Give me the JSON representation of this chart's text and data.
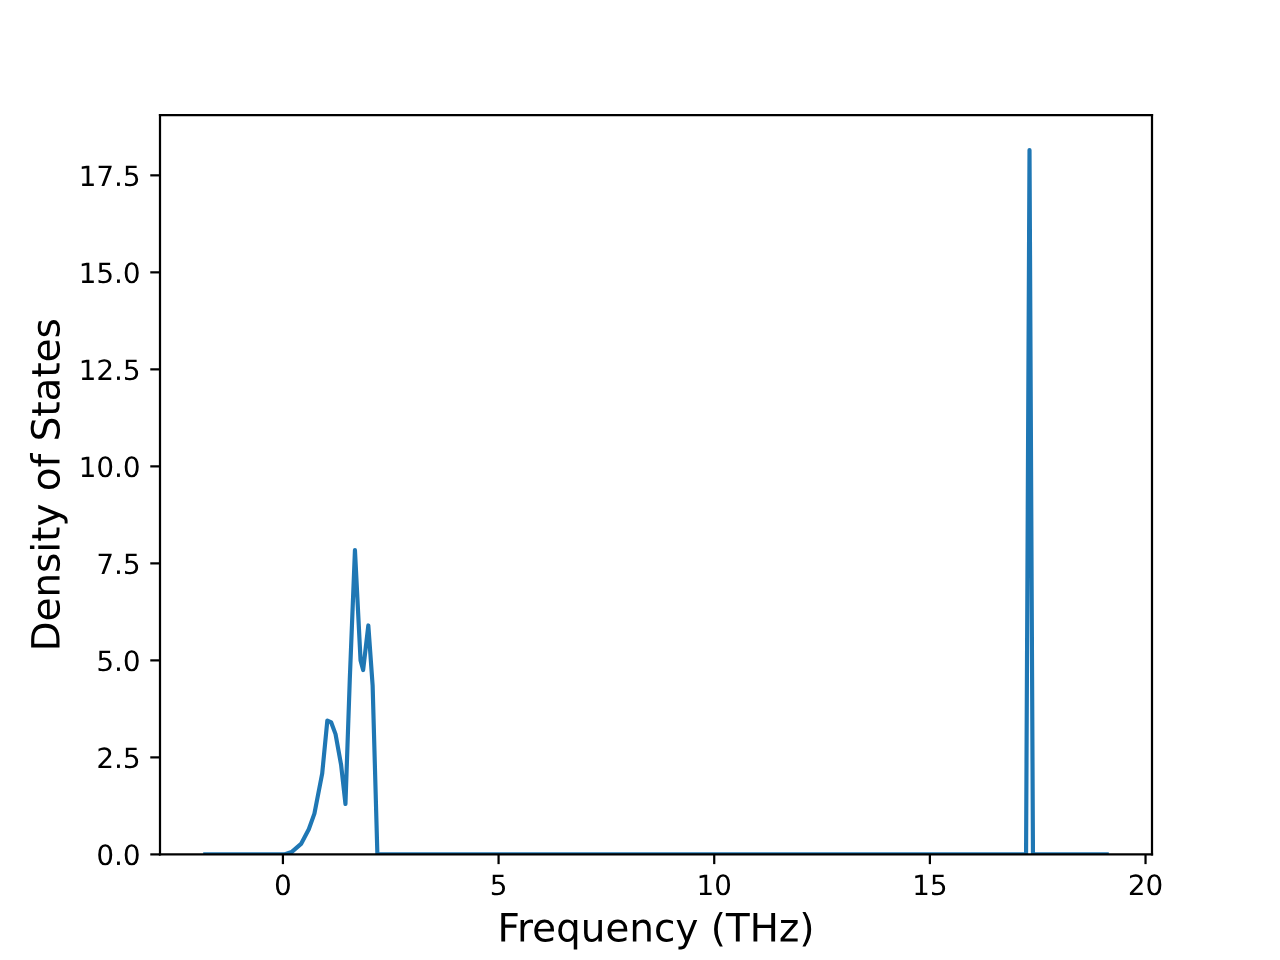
{
  "chart_data": {
    "type": "line",
    "xlabel": "Frequency (THz)",
    "ylabel": "Density of States",
    "series": [
      {
        "color": "#1f77b4",
        "x": [
          -1.8,
          0.03,
          0.2,
          0.42,
          0.6,
          0.73,
          0.91,
          1.03,
          1.12,
          1.22,
          1.35,
          1.45,
          1.55,
          1.67,
          1.8,
          1.86,
          1.98,
          2.08,
          2.19,
          2.3,
          17.23,
          17.31,
          17.39,
          19.1
        ],
        "values": [
          0,
          0,
          0.06,
          0.27,
          0.65,
          1.05,
          2.08,
          3.45,
          3.4,
          3.1,
          2.3,
          1.3,
          4.5,
          7.84,
          5.0,
          4.75,
          5.9,
          4.35,
          0,
          0,
          0,
          18.15,
          0,
          0
        ]
      }
    ],
    "xlim": [
      -2.85,
      20.15
    ],
    "ylim": [
      0,
      19.05
    ],
    "xticks": [
      0,
      5,
      10,
      15,
      20
    ],
    "yticks": [
      {
        "value": 0,
        "label": "0.0"
      },
      {
        "value": 2.5,
        "label": "2.5"
      },
      {
        "value": 5,
        "label": "5.0"
      },
      {
        "value": 7.5,
        "label": "7.5"
      },
      {
        "value": 10,
        "label": "10.0"
      },
      {
        "value": 12.5,
        "label": "12.5"
      },
      {
        "value": 15,
        "label": "15.0"
      },
      {
        "value": 17.5,
        "label": "17.5"
      }
    ],
    "grid": false,
    "legend": false
  }
}
